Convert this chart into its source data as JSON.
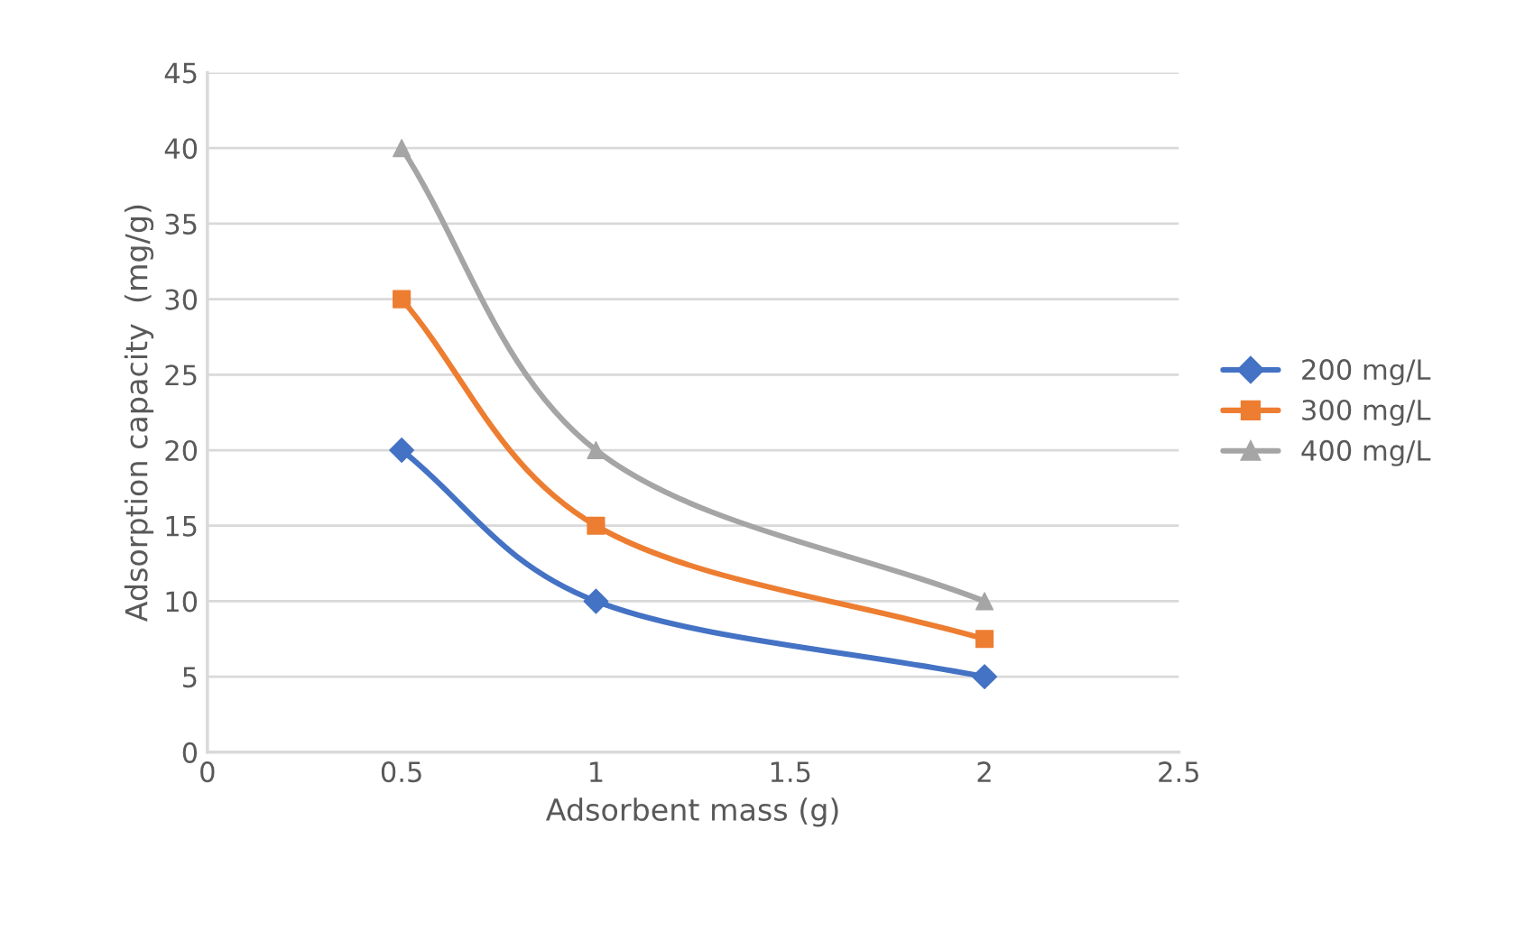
{
  "chart_data": {
    "type": "line",
    "xlabel": "Adsorbent mass (g)",
    "ylabel": "Adsorption capacity  (mg/g)",
    "x": [
      0.5,
      1,
      2
    ],
    "series": [
      {
        "name": "200 mg/L",
        "color": "#4472c4",
        "marker": "diamond",
        "values": [
          20,
          10,
          5
        ]
      },
      {
        "name": "300 mg/L",
        "color": "#ed7d31",
        "marker": "square",
        "values": [
          30,
          15,
          7.5
        ]
      },
      {
        "name": "400 mg/L",
        "color": "#a5a5a5",
        "marker": "triangle",
        "values": [
          40,
          20,
          10
        ]
      }
    ],
    "xlim": [
      0,
      2.5
    ],
    "xticks": [
      0,
      0.5,
      1,
      1.5,
      2,
      2.5
    ],
    "ylim": [
      0,
      45
    ],
    "yticks": [
      0,
      5,
      10,
      15,
      20,
      25,
      30,
      35,
      40,
      45
    ],
    "grid": "y",
    "legend": "right",
    "line_style": "solid"
  }
}
